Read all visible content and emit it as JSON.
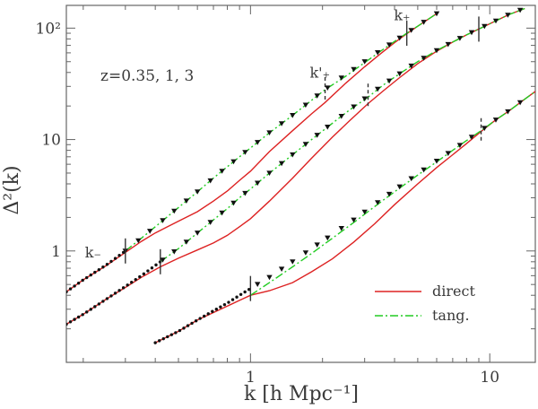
{
  "chart_data": {
    "type": "line",
    "title": "",
    "xlabel": "k [h Mpc⁻¹]",
    "ylabel": "Δ²(k)",
    "xscale": "log",
    "yscale": "log",
    "xlim": [
      0.17,
      15.5
    ],
    "ylim": [
      0.1,
      160
    ],
    "xticks": [
      {
        "value": 1,
        "label": "1"
      },
      {
        "value": 10,
        "label": "10"
      }
    ],
    "yticks": [
      {
        "value": 1,
        "label": "1"
      },
      {
        "value": 10,
        "label": "10"
      },
      {
        "value": 100,
        "label": "10²"
      }
    ],
    "grid": false,
    "annotation": "z=0.35, 1, 3",
    "legend": {
      "position": "bottom-right",
      "entries": [
        {
          "label": "direct",
          "color": "#dd2222",
          "style": "solid"
        },
        {
          "label": "tang.",
          "color": "#22cc22",
          "style": "dash-dot"
        }
      ]
    },
    "colors": {
      "direct": "#dd2222",
      "tang": "#22cc22",
      "markers": "#111111",
      "frame": "#666666"
    },
    "scale_labels": [
      {
        "text": "k₋",
        "curve": 0,
        "k": 0.22
      },
      {
        "text": "k'₊",
        "curve": 0,
        "k": 1.95
      },
      {
        "text": "k₊",
        "curve": 0,
        "k": 4.3
      }
    ],
    "marker_k": [
      0.3,
      0.34,
      0.38,
      0.43,
      0.48,
      0.54,
      0.6,
      0.68,
      0.76,
      0.85,
      0.95,
      1.07,
      1.2,
      1.35,
      1.5,
      1.7,
      1.9,
      2.1,
      2.4,
      2.7,
      3.0,
      3.4,
      3.8,
      4.2,
      4.7,
      5.3,
      6.0,
      6.7,
      7.5,
      8.4,
      9.5,
      10.6,
      11.9,
      13.4
    ],
    "series": [
      {
        "name": "z=0.35",
        "k": [
          0.17,
          0.2,
          0.25,
          0.3,
          0.35,
          0.4,
          0.5,
          0.6,
          0.7,
          0.8,
          0.9,
          1.0,
          1.2,
          1.5,
          1.8,
          2.05,
          2.5,
          3.0,
          3.5,
          4.0,
          4.5,
          5.0,
          6.0
        ],
        "linear": [
          0.43,
          0.55,
          0.75,
          1.0,
          1.3,
          1.65,
          2.45,
          3.4,
          4.5,
          5.7,
          7.0,
          8.4,
          11.5,
          16.5,
          22.5,
          28.0,
          38.0,
          50.0,
          63.0,
          76.0,
          90.0,
          104.0,
          135.0
        ],
        "direct": [
          0.43,
          0.55,
          0.74,
          0.97,
          1.22,
          1.45,
          1.85,
          2.25,
          2.8,
          3.45,
          4.3,
          5.2,
          7.8,
          12.0,
          17.0,
          21.5,
          32.0,
          45.0,
          59.0,
          74.0,
          89.0,
          104.0,
          135.0
        ],
        "tang": [
          1.0,
          1.3,
          1.65,
          2.45,
          3.4,
          4.5,
          5.7,
          7.0,
          8.4,
          11.5,
          16.5,
          22.5,
          28.0,
          37.0,
          49.0,
          62.0,
          76.0,
          90.0,
          104.0,
          135.0
        ],
        "tang_k": [
          0.3,
          0.35,
          0.4,
          0.5,
          0.6,
          0.7,
          0.8,
          0.9,
          1.0,
          1.2,
          1.5,
          1.8,
          2.05,
          2.5,
          3.0,
          3.5,
          4.0,
          4.5,
          5.0,
          6.0
        ],
        "ticks": [
          {
            "k": 0.3,
            "style": "solid"
          },
          {
            "k": 2.05,
            "style": "dashed"
          },
          {
            "k": 4.5,
            "style": "solid"
          }
        ]
      },
      {
        "name": "z=1",
        "k": [
          0.17,
          0.2,
          0.25,
          0.3,
          0.35,
          0.42,
          0.5,
          0.6,
          0.7,
          0.8,
          0.9,
          1.0,
          1.2,
          1.5,
          1.8,
          2.2,
          2.6,
          3.1,
          3.6,
          4.2,
          5.0,
          6.0,
          7.0,
          8.0,
          9.0,
          10.5,
          12.0,
          14.0
        ],
        "linear": [
          0.22,
          0.27,
          0.37,
          0.48,
          0.6,
          0.8,
          1.05,
          1.45,
          1.9,
          2.4,
          3.0,
          3.6,
          5.0,
          7.3,
          10.0,
          14.0,
          18.5,
          24.5,
          31.0,
          39.0,
          50.0,
          63.0,
          75.0,
          87.0,
          98.0,
          115.0,
          132.0,
          150.0
        ],
        "direct": [
          0.22,
          0.27,
          0.37,
          0.47,
          0.58,
          0.72,
          0.86,
          1.02,
          1.18,
          1.38,
          1.65,
          1.95,
          2.8,
          4.5,
          6.8,
          10.5,
          14.8,
          21.0,
          27.5,
          36.0,
          48.0,
          62.0,
          75.0,
          87.0,
          98.0,
          115.0,
          132.0,
          150.0
        ],
        "tang": [
          0.8,
          1.05,
          1.45,
          1.9,
          2.4,
          3.0,
          3.6,
          5.0,
          7.3,
          10.0,
          14.0,
          18.5,
          24.0,
          31.0,
          39.0,
          50.0,
          63.0,
          75.0,
          87.0,
          98.0,
          115.0,
          132.0,
          150.0
        ],
        "tang_k": [
          0.42,
          0.5,
          0.6,
          0.7,
          0.8,
          0.9,
          1.0,
          1.2,
          1.5,
          1.8,
          2.2,
          2.6,
          3.1,
          3.6,
          4.2,
          5.0,
          6.0,
          7.0,
          8.0,
          9.0,
          10.5,
          12.0,
          14.0
        ],
        "ticks": [
          {
            "k": 0.42,
            "style": "solid"
          },
          {
            "k": 3.1,
            "style": "dashed"
          },
          {
            "k": 9.0,
            "style": "solid"
          }
        ]
      },
      {
        "name": "z=3",
        "k": [
          0.4,
          0.5,
          0.6,
          0.7,
          0.8,
          0.9,
          1.0,
          1.2,
          1.5,
          1.8,
          2.2,
          2.7,
          3.3,
          4.0,
          5.0,
          6.0,
          7.0,
          8.0,
          9.2,
          10.5,
          12.0,
          14.0,
          15.5
        ],
        "linear": [
          0.15,
          0.19,
          0.24,
          0.29,
          0.34,
          0.4,
          0.46,
          0.58,
          0.8,
          1.05,
          1.4,
          1.9,
          2.6,
          3.5,
          4.9,
          6.4,
          8.0,
          9.8,
          12.0,
          14.8,
          18.0,
          23.0,
          27.0
        ],
        "direct": [
          0.15,
          0.19,
          0.24,
          0.28,
          0.32,
          0.36,
          0.4,
          0.44,
          0.52,
          0.65,
          0.85,
          1.2,
          1.75,
          2.6,
          4.0,
          5.6,
          7.3,
          9.2,
          11.8,
          14.8,
          18.0,
          23.0,
          27.0
        ],
        "tang": [
          0.4,
          0.52,
          0.72,
          0.95,
          1.3,
          1.8,
          2.5,
          3.4,
          4.8,
          6.3,
          8.0,
          9.8,
          12.0,
          14.8,
          18.0,
          23.0,
          27.0
        ],
        "tang_k": [
          1.0,
          1.2,
          1.5,
          1.8,
          2.2,
          2.7,
          3.3,
          4.0,
          5.0,
          6.0,
          7.0,
          8.0,
          9.2,
          10.5,
          12.0,
          14.0,
          15.5
        ],
        "ticks": [
          {
            "k": 1.0,
            "style": "solid"
          },
          {
            "k": 9.2,
            "style": "dashed"
          }
        ]
      }
    ]
  }
}
